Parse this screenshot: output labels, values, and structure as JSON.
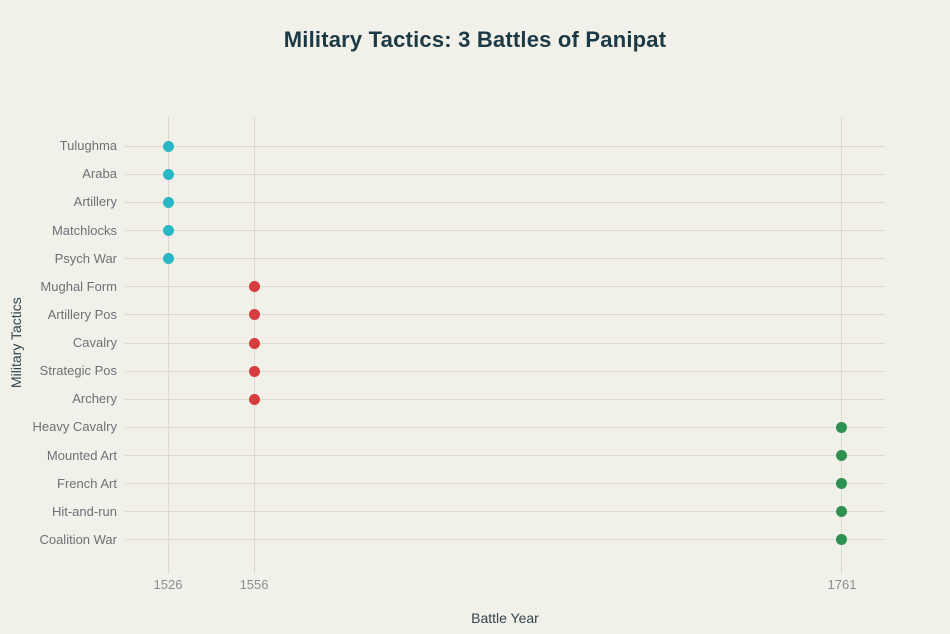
{
  "chart_data": {
    "type": "scatter",
    "title": "Military Tactics: 3 Battles of Panipat",
    "xlabel": "Battle Year",
    "ylabel": "Military Tactics",
    "background": "#f1f0e9",
    "grid": true,
    "x_range": [
      1511,
      1776
    ],
    "x_tick_labels": [
      "1526",
      "1556",
      "1761"
    ],
    "categories": [
      "Tulughma",
      "Araba",
      "Artillery",
      "Matchlocks",
      "Psych War",
      "Mughal Form",
      "Artillery Pos",
      "Cavalry",
      "Strategic Pos",
      "Archery",
      "Heavy Cavalry",
      "Mounted Art",
      "French Art",
      "Hit-and-run",
      "Coalition War"
    ],
    "point_colors": {
      "1526": "#29b6c6",
      "1556": "#d73c3e",
      "1761": "#2e9150"
    },
    "points": [
      {
        "category": "Tulughma",
        "x": 1526
      },
      {
        "category": "Araba",
        "x": 1526
      },
      {
        "category": "Artillery",
        "x": 1526
      },
      {
        "category": "Matchlocks",
        "x": 1526
      },
      {
        "category": "Psych War",
        "x": 1526
      },
      {
        "category": "Mughal Form",
        "x": 1556
      },
      {
        "category": "Artillery Pos",
        "x": 1556
      },
      {
        "category": "Cavalry",
        "x": 1556
      },
      {
        "category": "Strategic Pos",
        "x": 1556
      },
      {
        "category": "Archery",
        "x": 1556
      },
      {
        "category": "Heavy Cavalry",
        "x": 1761
      },
      {
        "category": "Mounted Art",
        "x": 1761
      },
      {
        "category": "French Art",
        "x": 1761
      },
      {
        "category": "Hit-and-run",
        "x": 1761
      },
      {
        "category": "Coalition War",
        "x": 1761
      }
    ]
  }
}
